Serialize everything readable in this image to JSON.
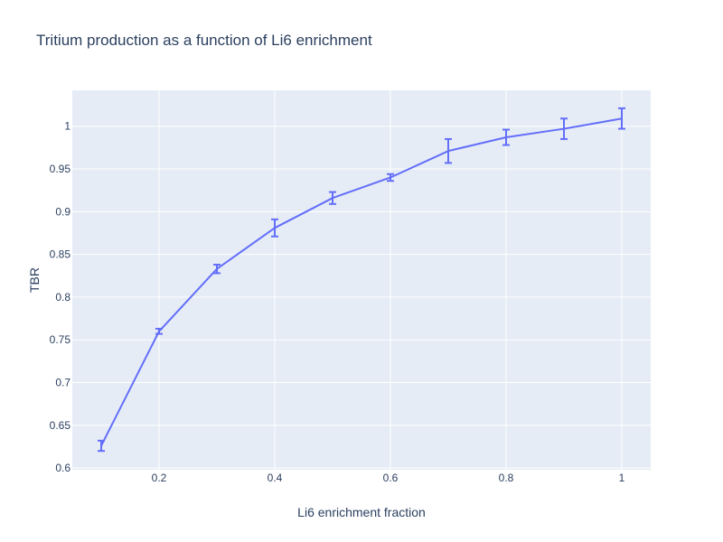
{
  "chart_data": {
    "type": "line",
    "title": "Tritium production as a function of Li6 enrichment",
    "xlabel": "Li6 enrichment fraction",
    "ylabel": "TBR",
    "xlim": [
      0.05,
      1.05
    ],
    "ylim": [
      0.598,
      1.042
    ],
    "x_ticks": [
      0.2,
      0.4,
      0.6,
      0.8,
      1
    ],
    "x_tick_labels": [
      "0.2",
      "0.4",
      "0.6",
      "0.8",
      "1"
    ],
    "y_ticks": [
      0.6,
      0.65,
      0.7,
      0.75,
      0.8,
      0.85,
      0.9,
      0.95,
      1
    ],
    "y_tick_labels": [
      "0.6",
      "0.65",
      "0.7",
      "0.75",
      "0.8",
      "0.85",
      "0.9",
      "0.95",
      "1"
    ],
    "grid": true,
    "legend": "none",
    "series": [
      {
        "x": [
          0.1,
          0.2,
          0.3,
          0.4,
          0.5,
          0.6,
          0.7,
          0.8,
          0.9,
          1.0
        ],
        "y": [
          0.626,
          0.76,
          0.833,
          0.881,
          0.916,
          0.94,
          0.971,
          0.987,
          0.997,
          1.009
        ],
        "error": [
          0.006,
          0.003,
          0.005,
          0.01,
          0.007,
          0.004,
          0.014,
          0.009,
          0.012,
          0.012
        ],
        "color": "#636efa"
      }
    ]
  },
  "colors": {
    "plot_bg": "#e5ecf6",
    "grid": "#ffffff",
    "text": "#2a3f5f",
    "series": "#636efa"
  }
}
